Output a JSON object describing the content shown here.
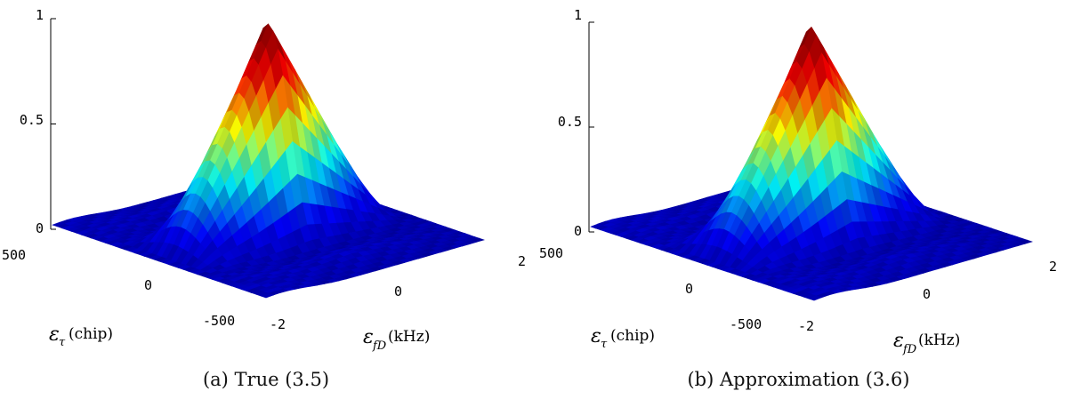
{
  "chart_data": [
    {
      "type": "surface",
      "caption": "(a) True (3.5)",
      "variant": "true",
      "zlim": [
        0,
        1
      ],
      "z_ticks": [
        "0",
        "0.5",
        "1"
      ],
      "tau_ticks": [
        "500",
        "0",
        "-500"
      ],
      "doppler_ticks": [
        "-2",
        "0",
        "2"
      ],
      "tau_label": {
        "symbol": "ε",
        "subscript": "τ",
        "unit": "(chip)"
      },
      "doppler_label": {
        "symbol": "ε",
        "subscript": "fD",
        "unit": "(kHz)"
      },
      "tau_range": [
        -500,
        500
      ],
      "doppler_range": [
        -2,
        2
      ],
      "peak": {
        "tau": 0,
        "doppler": 0,
        "value": 1
      },
      "side_lobes": [
        {
          "tau": 0,
          "doppler": -1.4,
          "value": 0.2
        },
        {
          "tau": 0,
          "doppler": 1.4,
          "value": 0.2
        }
      ],
      "colormap": [
        "#00008f",
        "#0000ff",
        "#00ffff",
        "#ffff00",
        "#ff0000",
        "#800000"
      ]
    },
    {
      "type": "surface",
      "caption": "(b) Approximation (3.6)",
      "variant": "approx",
      "zlim": [
        0,
        1
      ],
      "z_ticks": [
        "0",
        "0.5",
        "1"
      ],
      "tau_ticks": [
        "500",
        "0",
        "-500"
      ],
      "doppler_ticks": [
        "-2",
        "0",
        "2"
      ],
      "tau_label": {
        "symbol": "ε",
        "subscript": "τ",
        "unit": "(chip)"
      },
      "doppler_label": {
        "symbol": "ε",
        "subscript": "fD",
        "unit": "(kHz)"
      },
      "tau_range": [
        -500,
        500
      ],
      "doppler_range": [
        -2,
        2
      ],
      "peak": {
        "tau": 0,
        "doppler": 0,
        "value": 1
      },
      "side_lobes": [
        {
          "tau": 0,
          "doppler": -1.4,
          "value": 0.2
        },
        {
          "tau": 0,
          "doppler": 1.4,
          "value": 0.2
        }
      ],
      "colormap": [
        "#00008f",
        "#0000ff",
        "#00ffff",
        "#ffff00",
        "#ff0000",
        "#800000"
      ]
    }
  ]
}
